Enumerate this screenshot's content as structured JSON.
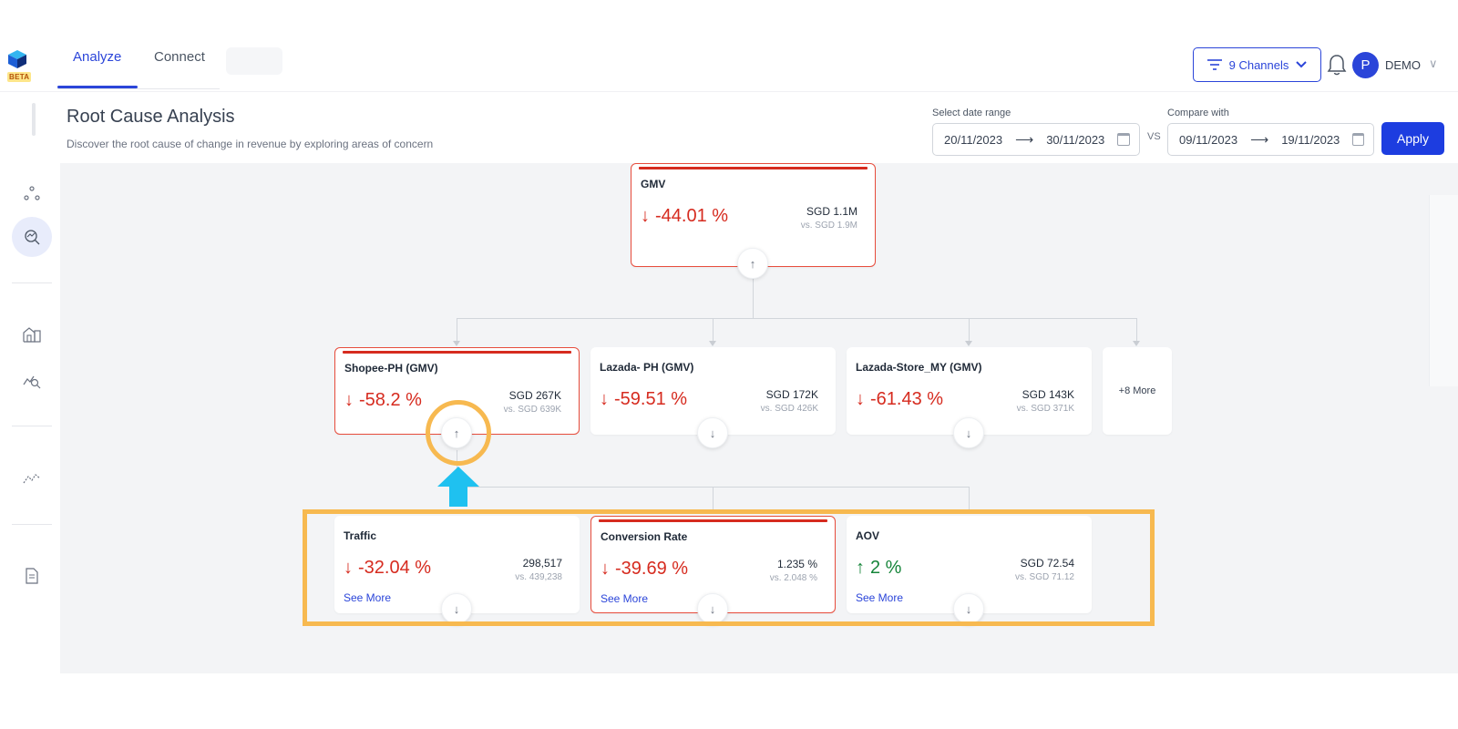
{
  "nav": {
    "logo_badge": "BETA",
    "tabs": [
      {
        "label": "Analyze",
        "active": true
      },
      {
        "label": "Connect",
        "active": false
      }
    ],
    "channels_button": "9 Channels",
    "avatar_initial": "P",
    "user_name": "DEMO",
    "icons": [
      "filter-icon",
      "chevron-down-icon",
      "bell-icon",
      "chevron-down-icon"
    ]
  },
  "header": {
    "title": "Root Cause Analysis",
    "subtitle": "Discover the root cause of change in revenue by exploring areas of concern",
    "date_range_label": "Select date range",
    "date_range_start": "20/11/2023",
    "date_range_end": "30/11/2023",
    "vs_label": "VS",
    "compare_label": "Compare with",
    "compare_start": "09/11/2023",
    "compare_end": "19/11/2023",
    "apply_label": "Apply",
    "arrow": "⟶"
  },
  "sidebar": {
    "items": [
      "network-icon",
      "analyze-icon",
      "store-icon",
      "chart-search-icon",
      "trend-icon",
      "report-icon"
    ],
    "active_index": 1
  },
  "tree": {
    "root": {
      "title": "GMV",
      "direction": "down",
      "pct": "-44.01 %",
      "value": "SGD 1.1M",
      "compare": "vs. SGD 1.9M",
      "alert": true,
      "toggle": "↑"
    },
    "level1": [
      {
        "title": "Shopee-PH (GMV)",
        "direction": "down",
        "pct": "-58.2 %",
        "value": "SGD 267K",
        "compare": "vs. SGD 639K",
        "alert": true,
        "toggle": "↑"
      },
      {
        "title": "Lazada- PH (GMV)",
        "direction": "down",
        "pct": "-59.51 %",
        "value": "SGD 172K",
        "compare": "vs. SGD 426K",
        "alert": false,
        "toggle": "↓"
      },
      {
        "title": "Lazada-Store_MY (GMV)",
        "direction": "down",
        "pct": "-61.43 %",
        "value": "SGD 143K",
        "compare": "vs. SGD 371K",
        "alert": false,
        "toggle": "↓"
      }
    ],
    "more_label": "+8 More",
    "level2": [
      {
        "title": "Traffic",
        "direction": "down",
        "pct": "-32.04 %",
        "value": "298,517",
        "compare": "vs. 439,238",
        "alert": false,
        "see_more": "See More",
        "toggle": "↓"
      },
      {
        "title": "Conversion Rate",
        "direction": "down",
        "pct": "-39.69 %",
        "value": "1.235 %",
        "compare": "vs. 2.048 %",
        "alert": true,
        "see_more": "See More",
        "toggle": "↓"
      },
      {
        "title": "AOV",
        "direction": "up",
        "pct": "2 %",
        "value": "SGD 72.54",
        "compare": "vs. SGD 71.12",
        "alert": false,
        "see_more": "See More",
        "toggle": "↓"
      }
    ],
    "arrow_down": "↓",
    "arrow_up": "↑"
  },
  "colors": {
    "accent": "#2b45d9",
    "negative": "#d62b1f",
    "positive": "#16853a",
    "annotation": "#f7b950",
    "annotation_arrow": "#1fc1f0"
  }
}
